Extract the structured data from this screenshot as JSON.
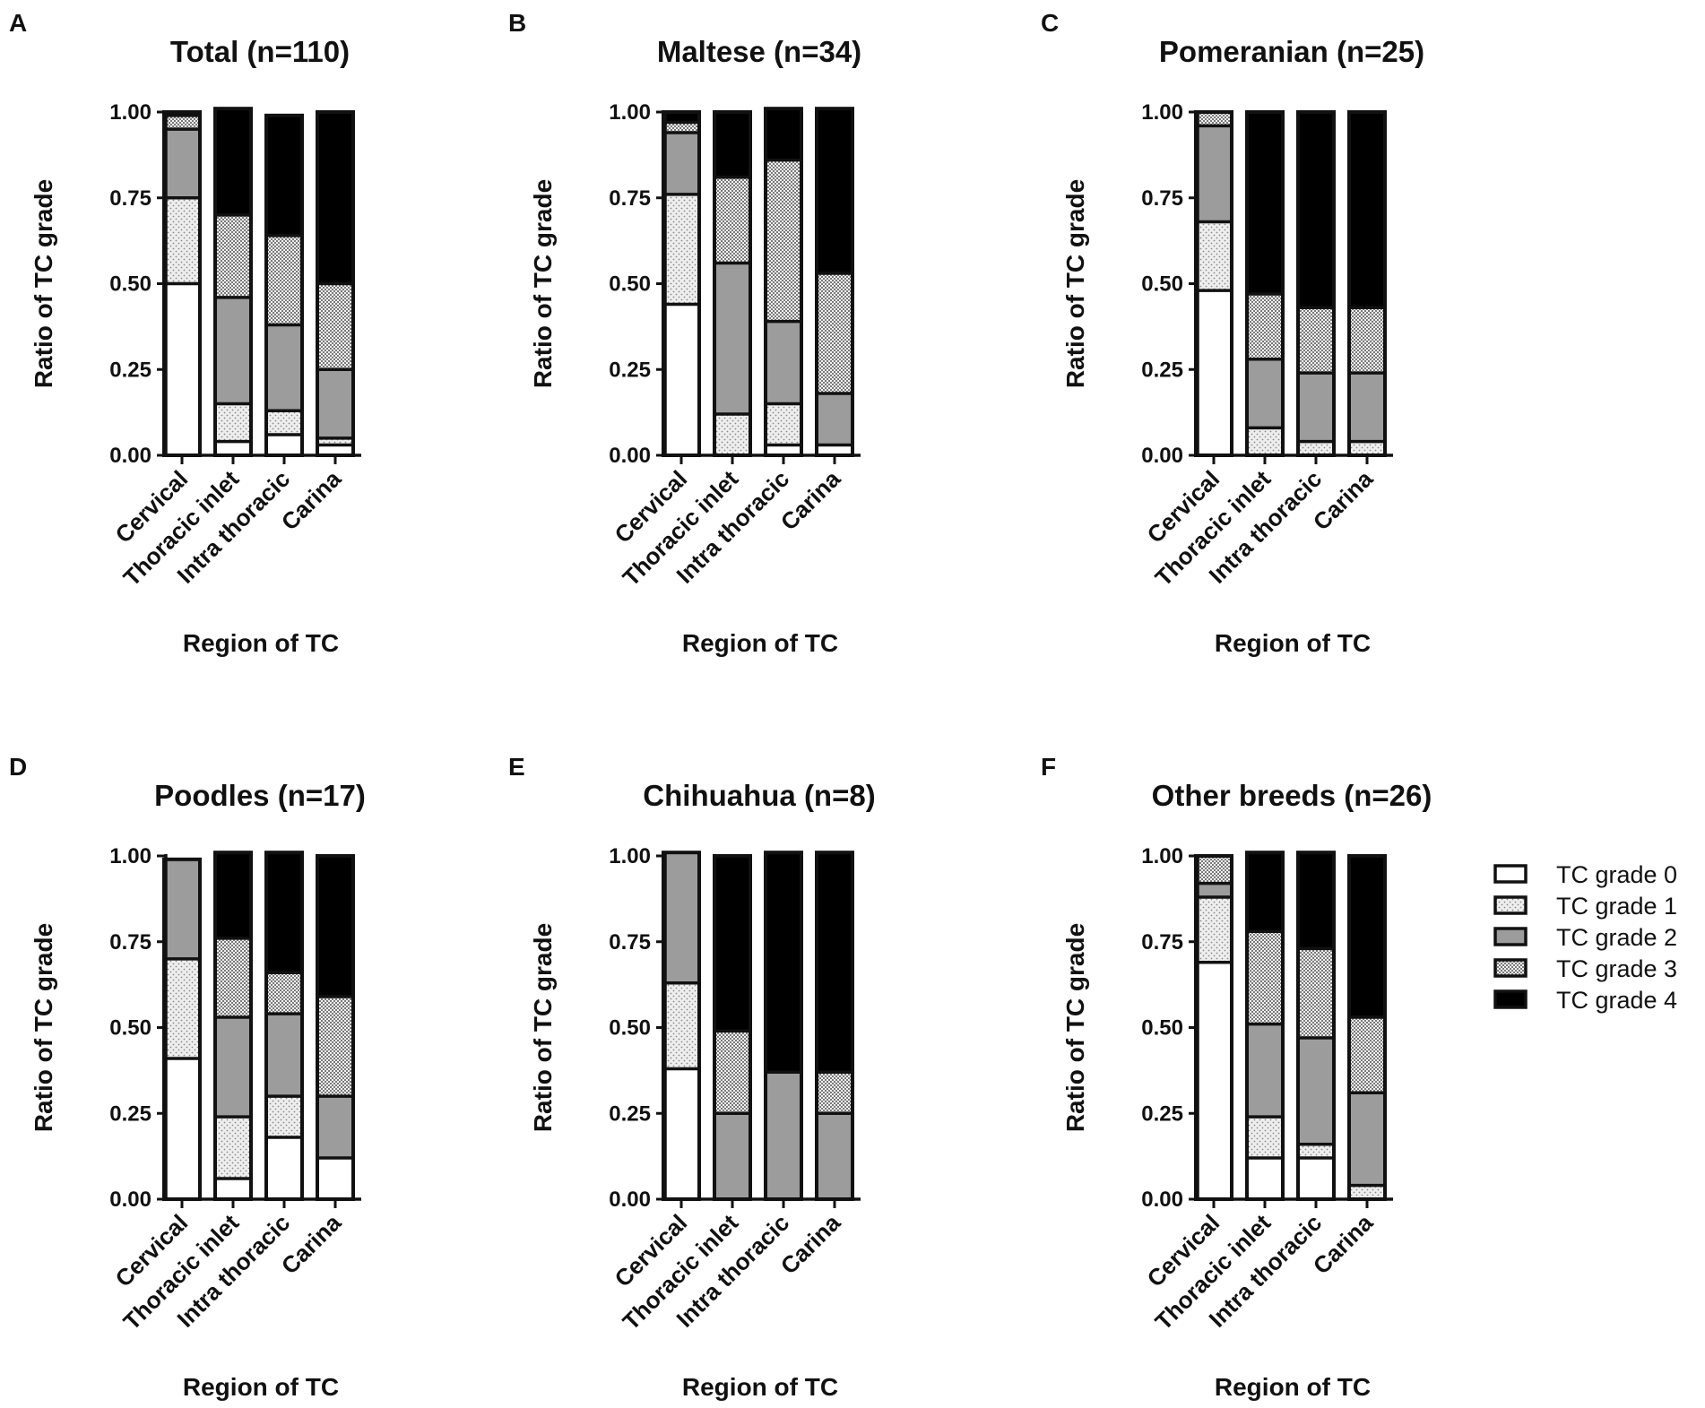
{
  "figure_title": "",
  "colors": {
    "grade0": "#ffffff",
    "grade1": "#e6e6e6",
    "grade2": "#9c9c9c",
    "grade3": "#c8c8c8",
    "grade4": "#000000",
    "axis": "#111111"
  },
  "legend": {
    "entries": [
      "TC grade 0",
      "TC grade 1",
      "TC grade 2",
      "TC grade 3",
      "TC grade 4"
    ]
  },
  "chart_data": [
    {
      "type": "bar",
      "stacked": true,
      "panel_letter": "A",
      "title": "Total (n=110)",
      "xlabel": "Region of TC",
      "ylabel": "Ratio of TC grade",
      "ylim": [
        0,
        1
      ],
      "yticks": [
        "0.00",
        "0.25",
        "0.50",
        "0.75",
        "1.00"
      ],
      "categories": [
        "Cervical",
        "Thoracic inlet",
        "Intra thoracic",
        "Carina"
      ],
      "series": [
        {
          "name": "TC grade 0",
          "values": [
            0.5,
            0.04,
            0.06,
            0.03
          ]
        },
        {
          "name": "TC grade 1",
          "values": [
            0.25,
            0.11,
            0.07,
            0.02
          ]
        },
        {
          "name": "TC grade 2",
          "values": [
            0.2,
            0.31,
            0.25,
            0.2
          ]
        },
        {
          "name": "TC grade 3",
          "values": [
            0.04,
            0.24,
            0.26,
            0.25
          ]
        },
        {
          "name": "TC grade 4",
          "values": [
            0.01,
            0.31,
            0.35,
            0.5
          ]
        }
      ]
    },
    {
      "type": "bar",
      "stacked": true,
      "panel_letter": "B",
      "title": "Maltese (n=34)",
      "xlabel": "Region of TC",
      "ylabel": "Ratio of TC grade",
      "ylim": [
        0,
        1
      ],
      "yticks": [
        "0.00",
        "0.25",
        "0.50",
        "0.75",
        "1.00"
      ],
      "categories": [
        "Cervical",
        "Thoracic inlet",
        "Intra thoracic",
        "Carina"
      ],
      "series": [
        {
          "name": "TC grade 0",
          "values": [
            0.44,
            0.0,
            0.03,
            0.03
          ]
        },
        {
          "name": "TC grade 1",
          "values": [
            0.32,
            0.12,
            0.12,
            0.0
          ]
        },
        {
          "name": "TC grade 2",
          "values": [
            0.18,
            0.44,
            0.24,
            0.15
          ]
        },
        {
          "name": "TC grade 3",
          "values": [
            0.03,
            0.25,
            0.47,
            0.35
          ]
        },
        {
          "name": "TC grade 4",
          "values": [
            0.03,
            0.19,
            0.15,
            0.48
          ]
        }
      ]
    },
    {
      "type": "bar",
      "stacked": true,
      "panel_letter": "C",
      "title": "Pomeranian (n=25)",
      "xlabel": "Region of TC",
      "ylabel": "Ratio of TC grade",
      "ylim": [
        0,
        1
      ],
      "yticks": [
        "0.00",
        "0.25",
        "0.50",
        "0.75",
        "1.00"
      ],
      "categories": [
        "Cervical",
        "Thoracic inlet",
        "Intra thoracic",
        "Carina"
      ],
      "series": [
        {
          "name": "TC grade 0",
          "values": [
            0.48,
            0.0,
            0.0,
            0.0
          ]
        },
        {
          "name": "TC grade 1",
          "values": [
            0.2,
            0.08,
            0.04,
            0.04
          ]
        },
        {
          "name": "TC grade 2",
          "values": [
            0.28,
            0.2,
            0.2,
            0.2
          ]
        },
        {
          "name": "TC grade 3",
          "values": [
            0.04,
            0.19,
            0.19,
            0.19
          ]
        },
        {
          "name": "TC grade 4",
          "values": [
            0.0,
            0.53,
            0.57,
            0.57
          ]
        }
      ]
    },
    {
      "type": "bar",
      "stacked": true,
      "panel_letter": "D",
      "title": "Poodles (n=17)",
      "xlabel": "Region of TC",
      "ylabel": "Ratio of TC grade",
      "ylim": [
        0,
        1
      ],
      "yticks": [
        "0.00",
        "0.25",
        "0.50",
        "0.75",
        "1.00"
      ],
      "categories": [
        "Cervical",
        "Thoracic inlet",
        "Intra thoracic",
        "Carina"
      ],
      "series": [
        {
          "name": "TC grade 0",
          "values": [
            0.41,
            0.06,
            0.18,
            0.12
          ]
        },
        {
          "name": "TC grade 1",
          "values": [
            0.29,
            0.18,
            0.12,
            0.0
          ]
        },
        {
          "name": "TC grade 2",
          "values": [
            0.29,
            0.29,
            0.24,
            0.18
          ]
        },
        {
          "name": "TC grade 3",
          "values": [
            0.0,
            0.23,
            0.12,
            0.29
          ]
        },
        {
          "name": "TC grade 4",
          "values": [
            0.0,
            0.25,
            0.35,
            0.41
          ]
        }
      ]
    },
    {
      "type": "bar",
      "stacked": true,
      "panel_letter": "E",
      "title": "Chihuahua (n=8)",
      "xlabel": "Region of TC",
      "ylabel": "Ratio of TC grade",
      "ylim": [
        0,
        1
      ],
      "yticks": [
        "0.00",
        "0.25",
        "0.50",
        "0.75",
        "1.00"
      ],
      "categories": [
        "Cervical",
        "Thoracic inlet",
        "Intra thoracic",
        "Carina"
      ],
      "series": [
        {
          "name": "TC grade 0",
          "values": [
            0.38,
            0.0,
            0.0,
            0.0
          ]
        },
        {
          "name": "TC grade 1",
          "values": [
            0.25,
            0.0,
            0.0,
            0.0
          ]
        },
        {
          "name": "TC grade 2",
          "values": [
            0.38,
            0.25,
            0.37,
            0.25
          ]
        },
        {
          "name": "TC grade 3",
          "values": [
            0.0,
            0.24,
            0.0,
            0.12
          ]
        },
        {
          "name": "TC grade 4",
          "values": [
            0.0,
            0.51,
            0.64,
            0.64
          ]
        }
      ]
    },
    {
      "type": "bar",
      "stacked": true,
      "panel_letter": "F",
      "title": "Other breeds (n=26)",
      "xlabel": "Region of TC",
      "ylabel": "Ratio of TC grade",
      "ylim": [
        0,
        1
      ],
      "yticks": [
        "0.00",
        "0.25",
        "0.50",
        "0.75",
        "1.00"
      ],
      "categories": [
        "Cervical",
        "Thoracic inlet",
        "Intra thoracic",
        "Carina"
      ],
      "series": [
        {
          "name": "TC grade 0",
          "values": [
            0.69,
            0.12,
            0.12,
            0.0
          ]
        },
        {
          "name": "TC grade 1",
          "values": [
            0.19,
            0.12,
            0.04,
            0.04
          ]
        },
        {
          "name": "TC grade 2",
          "values": [
            0.04,
            0.27,
            0.31,
            0.27
          ]
        },
        {
          "name": "TC grade 3",
          "values": [
            0.08,
            0.27,
            0.26,
            0.22
          ]
        },
        {
          "name": "TC grade 4",
          "values": [
            0.0,
            0.23,
            0.28,
            0.47
          ]
        }
      ]
    }
  ]
}
